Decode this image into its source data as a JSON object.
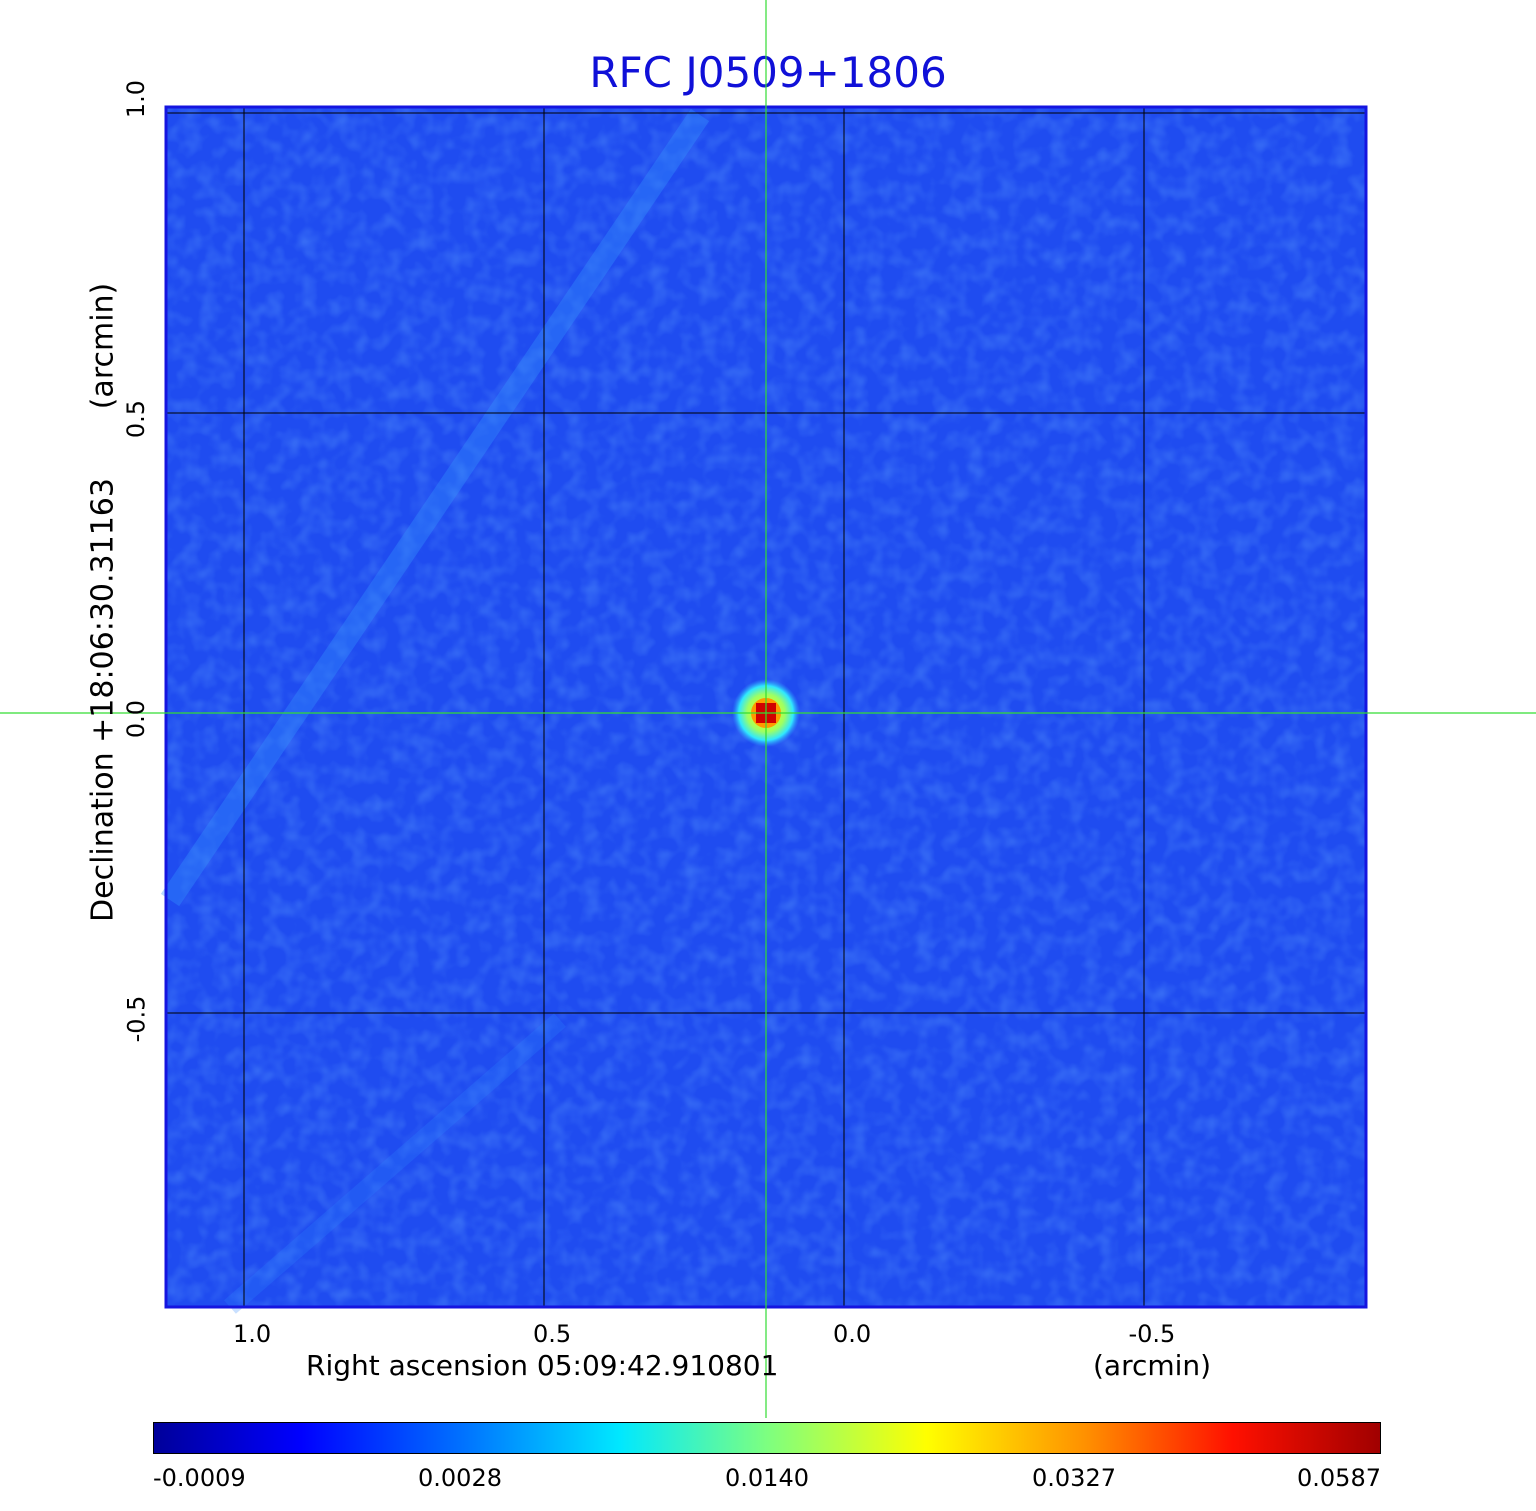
{
  "chart_data": {
    "type": "heatmap",
    "title": "RFC J0509+1806",
    "xlabel": "Right ascension  05:09:42.910801",
    "xunit": "(arcmin)",
    "ylabel": "Declination  +18:06:30.31163",
    "yunit": "(arcmin)",
    "x_ticks": [
      "1.0",
      "0.5",
      "0.0",
      "-0.5"
    ],
    "y_ticks": [
      "1.0",
      "0.5",
      "0.0",
      "-0.5"
    ],
    "x_tick_values": [
      1.0,
      0.5,
      0.0,
      -0.5
    ],
    "y_tick_values": [
      1.0,
      0.5,
      0.0,
      -0.5
    ],
    "xlim": [
      1.13,
      -0.87
    ],
    "ylim": [
      -0.99,
      1.01
    ],
    "grid": true,
    "crosshair": [
      0.13,
      0.0
    ],
    "peak": {
      "x": 0.13,
      "y": 0.0,
      "value": 0.0587
    },
    "colorbar": {
      "ticks": [
        "-0.0009",
        "0.0028",
        "0.0140",
        "0.0327",
        "0.0587"
      ],
      "colormap": "jet",
      "range": [
        -0.0009,
        0.0587
      ]
    },
    "colors": {
      "title": "#1010d8",
      "background_field": "#1f4cf0",
      "frame": "#1515e0",
      "crosshair": "#33dd33",
      "grid": "#000000"
    }
  }
}
